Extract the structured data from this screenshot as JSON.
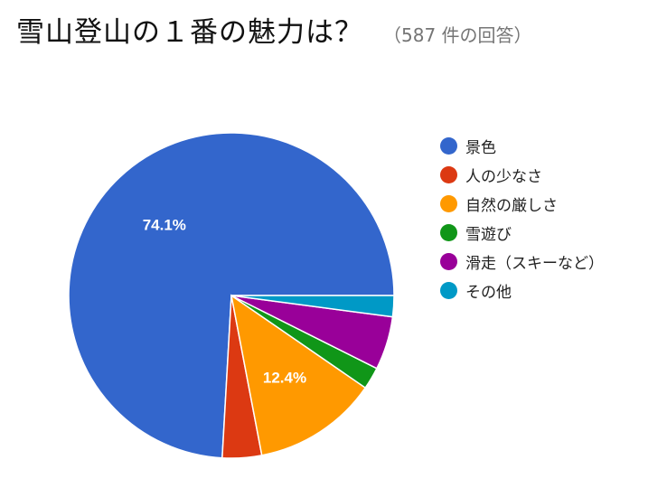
{
  "chart_data": {
    "type": "pie",
    "title": "雪山登山の１番の魅力は？",
    "subtitle": "（587 件の回答）",
    "legend_position": "right",
    "series": [
      {
        "name": "景色",
        "value": 74.1,
        "color": "#3366cc",
        "data_label": "74.1%"
      },
      {
        "name": "人の少なさ",
        "value": 3.9,
        "color": "#dc3912",
        "data_label": ""
      },
      {
        "name": "自然の厳しさ",
        "value": 12.4,
        "color": "#ff9900",
        "data_label": "12.4%"
      },
      {
        "name": "雪遊び",
        "value": 2.2,
        "color": "#109618",
        "data_label": ""
      },
      {
        "name": "滑走（スキーなど）",
        "value": 5.3,
        "color": "#990099",
        "data_label": ""
      },
      {
        "name": "その他",
        "value": 2.1,
        "color": "#0099c6",
        "data_label": ""
      }
    ]
  }
}
